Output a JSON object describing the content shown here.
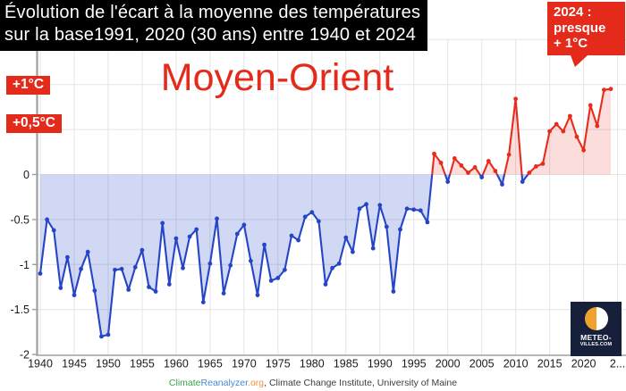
{
  "header": {
    "title_line1": "Évolution de l'écart à la moyenne des températures",
    "title_line2": "sur la base1991, 2020 (30 ans) entre 1940 et 2024"
  },
  "annotation": {
    "line1": "2024 :",
    "line2": "presque",
    "line3": "+ 1°C"
  },
  "y_axis_callouts": {
    "plus1": "+1°C",
    "plus05": "+0,5°C"
  },
  "footer": {
    "credit_climate": "Climate",
    "credit_reanalyzer": "Reanalyzer",
    "credit_org": ".org",
    "credit_rest": ", Climate Change Institute, University of Maine"
  },
  "logo": {
    "line1": "METEO-",
    "line2": "VILLES.COM"
  },
  "colors": {
    "accent_red": "#e42a1a",
    "navy": "#17203a",
    "logo_orange": "#f0a22e",
    "credit_green": "#3ba14b",
    "credit_blue": "#4a86d8",
    "credit_orange": "#f2913f",
    "grid": "#e3e3e8",
    "axis": "#9f9fa3",
    "tick_text": "#1a1a1a"
  },
  "chart_data": {
    "type": "line",
    "title": "Moyen-Orient",
    "subtitle": "Écart à la moyenne 1991-2020, 1940-2024",
    "years": [
      1940,
      1941,
      1942,
      1943,
      1944,
      1945,
      1946,
      1947,
      1948,
      1949,
      1950,
      1951,
      1952,
      1953,
      1954,
      1955,
      1956,
      1957,
      1958,
      1959,
      1960,
      1961,
      1962,
      1963,
      1964,
      1965,
      1966,
      1967,
      1968,
      1969,
      1970,
      1971,
      1972,
      1973,
      1974,
      1975,
      1976,
      1977,
      1978,
      1979,
      1980,
      1981,
      1982,
      1983,
      1984,
      1985,
      1986,
      1987,
      1988,
      1989,
      1990,
      1991,
      1992,
      1993,
      1994,
      1995,
      1996,
      1997,
      1998,
      1999,
      2000,
      2001,
      2002,
      2003,
      2004,
      2005,
      2006,
      2007,
      2008,
      2009,
      2010,
      2011,
      2012,
      2013,
      2014,
      2015,
      2016,
      2017,
      2018,
      2019,
      2020,
      2021,
      2022,
      2023,
      2024
    ],
    "values": [
      -1.1,
      -0.5,
      -0.62,
      -1.26,
      -0.92,
      -1.34,
      -1.05,
      -0.86,
      -1.29,
      -1.8,
      -1.78,
      -1.06,
      -1.05,
      -1.28,
      -1.03,
      -0.84,
      -1.25,
      -1.3,
      -0.54,
      -1.22,
      -0.71,
      -1.04,
      -0.69,
      -0.61,
      -1.42,
      -0.99,
      -0.49,
      -1.32,
      -1.01,
      -0.66,
      -0.56,
      -0.96,
      -1.34,
      -0.78,
      -1.18,
      -1.15,
      -1.06,
      -0.68,
      -0.73,
      -0.47,
      -0.42,
      -0.52,
      -1.22,
      -1.04,
      -0.99,
      -0.7,
      -0.86,
      -0.38,
      -0.33,
      -0.82,
      -0.34,
      -0.58,
      -1.3,
      -0.61,
      -0.38,
      -0.39,
      -0.4,
      -0.53,
      0.23,
      0.13,
      -0.08,
      0.18,
      0.1,
      0.02,
      0.08,
      -0.03,
      0.15,
      0.04,
      -0.11,
      0.22,
      0.84,
      -0.08,
      0.02,
      0.09,
      0.12,
      0.48,
      0.56,
      0.48,
      0.65,
      0.42,
      0.27,
      0.77,
      0.54,
      0.94,
      0.95
    ],
    "baseline": 0,
    "xlim": [
      1940,
      2025
    ],
    "ylim": [
      -2,
      1.5
    ],
    "x_ticks": [
      1940,
      1945,
      1950,
      1955,
      1960,
      1965,
      1970,
      1975,
      1980,
      1985,
      1990,
      1995,
      2000,
      2005,
      2010,
      2015,
      2020,
      2025
    ],
    "x_tick_labels": [
      "1940",
      "1945",
      "1950",
      "1955",
      "1960",
      "1965",
      "1970",
      "1975",
      "1980",
      "1985",
      "1990",
      "1995",
      "2000",
      "2005",
      "2010",
      "2015",
      "2020",
      "2..."
    ],
    "y_ticks": [
      0,
      -0.5,
      -1,
      -1.5,
      -2
    ],
    "y_tick_labels": [
      "0",
      "-0.5",
      "-1",
      "-1.5",
      "-2"
    ],
    "grid_y": [
      1.5,
      1,
      0.5,
      0,
      -0.5,
      -1,
      -1.5
    ],
    "grid_on": true,
    "legend": "none",
    "positive_color": "#e82c1c",
    "negative_color": "#2545c6",
    "positive_fill_opacity": 0.16,
    "negative_fill_opacity": 0.21
  }
}
